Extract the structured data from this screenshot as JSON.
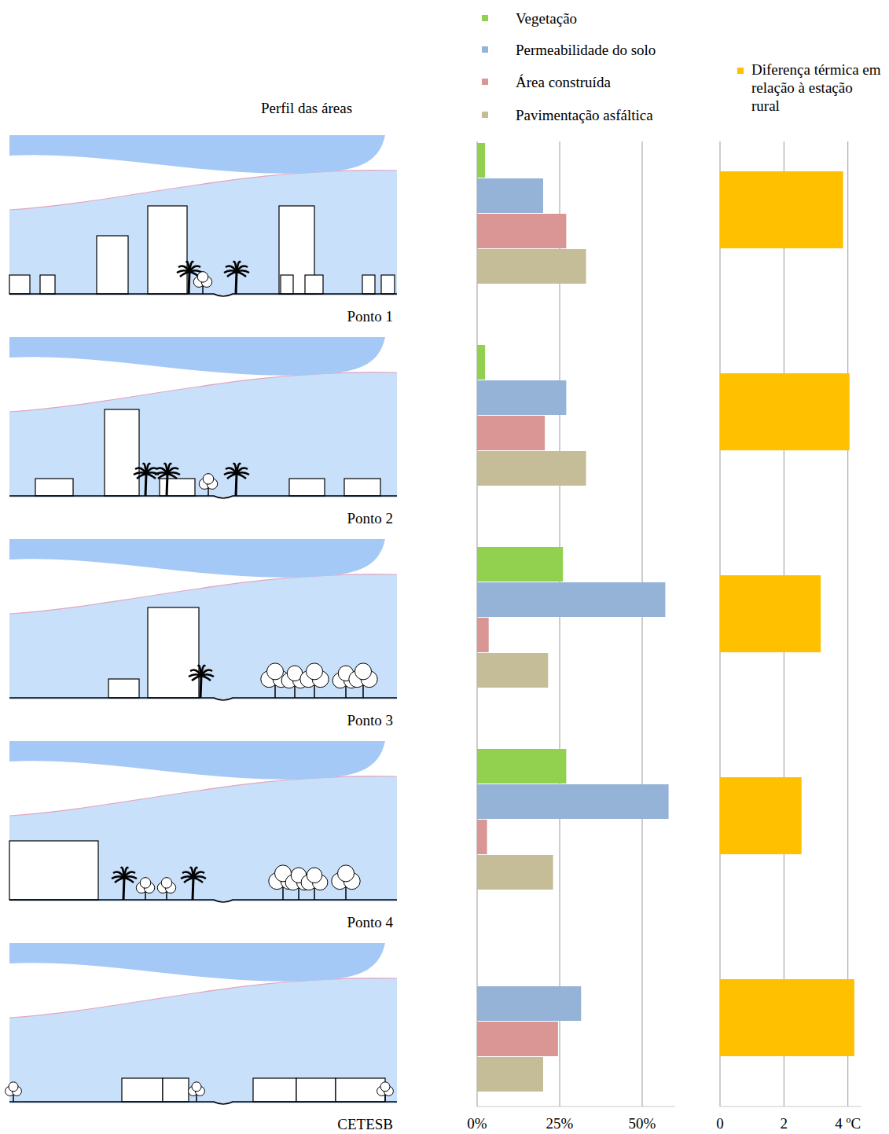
{
  "figure": {
    "profile_title": "Perfil das áreas"
  },
  "chart_data": [
    {
      "type": "bar",
      "orientation": "horizontal",
      "categories": [
        "Ponto 1",
        "Ponto 2",
        "Ponto 3",
        "Ponto 4",
        "CETESB"
      ],
      "series": [
        {
          "name": "Vegetação",
          "color": "#92d050",
          "values": [
            2.4,
            2.4,
            26,
            27,
            0
          ]
        },
        {
          "name": "Permeabilidade do solo",
          "color": "#95b3d7",
          "values": [
            20,
            27,
            57,
            58,
            31.5
          ]
        },
        {
          "name": "Área construída",
          "color": "#d99694",
          "values": [
            27,
            20.5,
            3.5,
            3,
            24.5
          ]
        },
        {
          "name": "Pavimentação asfáltica",
          "color": "#c4bd97",
          "values": [
            33,
            33,
            21.5,
            23,
            20
          ]
        }
      ],
      "xlim": [
        0,
        60
      ],
      "xticks": [
        {
          "value": 0,
          "label": "0%"
        },
        {
          "value": 25,
          "label": "25%"
        },
        {
          "value": 50,
          "label": "50%"
        }
      ],
      "grid": true,
      "legend": "top"
    },
    {
      "type": "bar",
      "orientation": "horizontal",
      "series": [
        {
          "name": "Diferença térmica em relação à estação rural",
          "color": "#ffc000",
          "values": [
            3.85,
            4.05,
            3.15,
            2.55,
            4.2
          ]
        }
      ],
      "xlim": [
        0,
        4.4
      ],
      "xticks": [
        0,
        2,
        {
          "value": 4,
          "label": "4 ºC"
        }
      ],
      "grid": true,
      "legend": "top"
    }
  ]
}
